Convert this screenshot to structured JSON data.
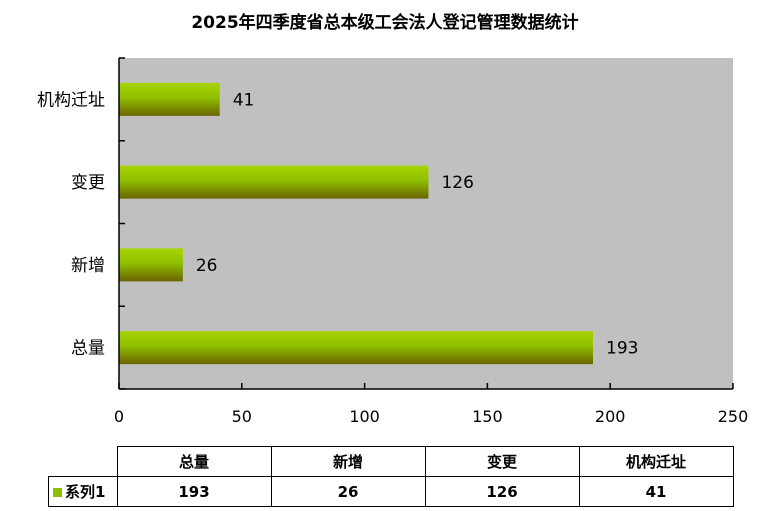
{
  "chart_data": {
    "type": "bar",
    "orientation": "horizontal",
    "title": "2025年四季度省总本级工会法人登记管理数据统计",
    "categories": [
      "总量",
      "新增",
      "变更",
      "机构迁址"
    ],
    "series": [
      {
        "name": "系列1",
        "values": [
          193,
          26,
          126,
          41
        ]
      }
    ],
    "xlim": [
      0,
      250
    ],
    "xticks": [
      0,
      50,
      100,
      150,
      200,
      250
    ],
    "grid": false,
    "legend": "data-table",
    "colors": {
      "plot_bg": "#c0c0c0",
      "bar_top": "#9fd000",
      "bar_bottom": "#6b6b00"
    }
  }
}
